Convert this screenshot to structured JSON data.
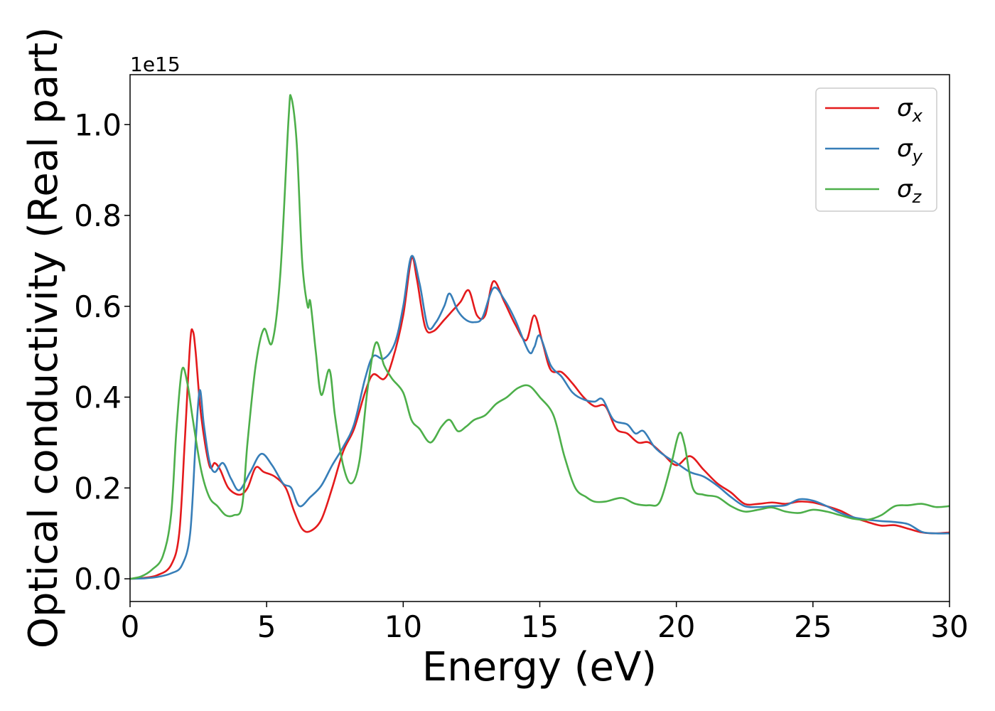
{
  "chart_data": {
    "type": "line",
    "title": "",
    "xlabel": "Energy (eV)",
    "ylabel": "Optical conductivity (Real part)",
    "y_offset_label": "1e15",
    "xlim": [
      0,
      30
    ],
    "ylim": [
      -0.05,
      1.11
    ],
    "xticks": [
      0,
      5,
      10,
      15,
      20,
      25,
      30
    ],
    "xtick_labels": [
      "0",
      "5",
      "10",
      "15",
      "20",
      "25",
      "30"
    ],
    "yticks": [
      0.0,
      0.2,
      0.4,
      0.6,
      0.8,
      1.0
    ],
    "ytick_labels": [
      "0.0",
      "0.2",
      "0.4",
      "0.6",
      "0.8",
      "1.0"
    ],
    "grid": false,
    "legend_position": "top-right",
    "series": [
      {
        "name": "σx",
        "symbol": "σ",
        "subscript": "x",
        "color": "#e41a1c",
        "points": [
          [
            0,
            0
          ],
          [
            0.5,
            0.002
          ],
          [
            1.0,
            0.008
          ],
          [
            1.5,
            0.03
          ],
          [
            1.8,
            0.1
          ],
          [
            2.0,
            0.3
          ],
          [
            2.2,
            0.52
          ],
          [
            2.3,
            0.545
          ],
          [
            2.4,
            0.5
          ],
          [
            2.6,
            0.36
          ],
          [
            2.9,
            0.25
          ],
          [
            3.1,
            0.255
          ],
          [
            3.3,
            0.24
          ],
          [
            3.6,
            0.2
          ],
          [
            4.0,
            0.185
          ],
          [
            4.3,
            0.2
          ],
          [
            4.6,
            0.245
          ],
          [
            4.9,
            0.235
          ],
          [
            5.3,
            0.225
          ],
          [
            5.7,
            0.2
          ],
          [
            6.0,
            0.15
          ],
          [
            6.3,
            0.11
          ],
          [
            6.6,
            0.105
          ],
          [
            7.0,
            0.13
          ],
          [
            7.4,
            0.2
          ],
          [
            7.8,
            0.28
          ],
          [
            8.2,
            0.33
          ],
          [
            8.6,
            0.41
          ],
          [
            8.9,
            0.45
          ],
          [
            9.3,
            0.44
          ],
          [
            9.6,
            0.48
          ],
          [
            10.0,
            0.58
          ],
          [
            10.3,
            0.705
          ],
          [
            10.5,
            0.66
          ],
          [
            10.8,
            0.555
          ],
          [
            11.1,
            0.545
          ],
          [
            11.5,
            0.57
          ],
          [
            11.8,
            0.59
          ],
          [
            12.1,
            0.61
          ],
          [
            12.4,
            0.635
          ],
          [
            12.7,
            0.58
          ],
          [
            13.0,
            0.58
          ],
          [
            13.3,
            0.655
          ],
          [
            13.7,
            0.61
          ],
          [
            14.1,
            0.56
          ],
          [
            14.5,
            0.525
          ],
          [
            14.8,
            0.58
          ],
          [
            15.1,
            0.52
          ],
          [
            15.4,
            0.46
          ],
          [
            15.8,
            0.455
          ],
          [
            16.2,
            0.43
          ],
          [
            16.6,
            0.4
          ],
          [
            17.0,
            0.38
          ],
          [
            17.4,
            0.38
          ],
          [
            17.8,
            0.33
          ],
          [
            18.2,
            0.32
          ],
          [
            18.6,
            0.3
          ],
          [
            19.0,
            0.3
          ],
          [
            19.5,
            0.275
          ],
          [
            20.0,
            0.25
          ],
          [
            20.5,
            0.27
          ],
          [
            21.0,
            0.24
          ],
          [
            21.5,
            0.21
          ],
          [
            22.0,
            0.19
          ],
          [
            22.5,
            0.165
          ],
          [
            23.0,
            0.165
          ],
          [
            23.5,
            0.168
          ],
          [
            24.0,
            0.165
          ],
          [
            24.5,
            0.17
          ],
          [
            25.0,
            0.168
          ],
          [
            25.5,
            0.16
          ],
          [
            26.0,
            0.15
          ],
          [
            26.5,
            0.135
          ],
          [
            27.0,
            0.125
          ],
          [
            27.5,
            0.117
          ],
          [
            28.0,
            0.118
          ],
          [
            28.5,
            0.11
          ],
          [
            29.0,
            0.102
          ],
          [
            29.5,
            0.1
          ],
          [
            30.0,
            0.102
          ]
        ]
      },
      {
        "name": "σy",
        "symbol": "σ",
        "subscript": "y",
        "color": "#377eb8",
        "points": [
          [
            0,
            0
          ],
          [
            0.5,
            0.001
          ],
          [
            1.0,
            0.004
          ],
          [
            1.5,
            0.012
          ],
          [
            1.9,
            0.03
          ],
          [
            2.2,
            0.1
          ],
          [
            2.4,
            0.3
          ],
          [
            2.55,
            0.415
          ],
          [
            2.7,
            0.34
          ],
          [
            2.9,
            0.26
          ],
          [
            3.1,
            0.235
          ],
          [
            3.4,
            0.255
          ],
          [
            3.7,
            0.22
          ],
          [
            4.0,
            0.195
          ],
          [
            4.4,
            0.235
          ],
          [
            4.8,
            0.275
          ],
          [
            5.2,
            0.25
          ],
          [
            5.6,
            0.21
          ],
          [
            5.9,
            0.2
          ],
          [
            6.2,
            0.16
          ],
          [
            6.6,
            0.18
          ],
          [
            7.0,
            0.205
          ],
          [
            7.4,
            0.25
          ],
          [
            7.8,
            0.29
          ],
          [
            8.2,
            0.34
          ],
          [
            8.6,
            0.44
          ],
          [
            8.9,
            0.49
          ],
          [
            9.3,
            0.485
          ],
          [
            9.7,
            0.52
          ],
          [
            10.0,
            0.6
          ],
          [
            10.3,
            0.71
          ],
          [
            10.6,
            0.65
          ],
          [
            10.9,
            0.555
          ],
          [
            11.2,
            0.565
          ],
          [
            11.5,
            0.6
          ],
          [
            11.7,
            0.628
          ],
          [
            12.0,
            0.59
          ],
          [
            12.3,
            0.57
          ],
          [
            12.6,
            0.565
          ],
          [
            12.9,
            0.575
          ],
          [
            13.3,
            0.64
          ],
          [
            13.7,
            0.615
          ],
          [
            14.1,
            0.57
          ],
          [
            14.6,
            0.5
          ],
          [
            14.8,
            0.51
          ],
          [
            15.0,
            0.535
          ],
          [
            15.4,
            0.47
          ],
          [
            15.8,
            0.445
          ],
          [
            16.2,
            0.41
          ],
          [
            16.6,
            0.395
          ],
          [
            17.0,
            0.39
          ],
          [
            17.3,
            0.395
          ],
          [
            17.7,
            0.35
          ],
          [
            18.2,
            0.34
          ],
          [
            18.5,
            0.32
          ],
          [
            18.8,
            0.325
          ],
          [
            19.2,
            0.29
          ],
          [
            19.6,
            0.27
          ],
          [
            20.0,
            0.255
          ],
          [
            20.5,
            0.235
          ],
          [
            21.0,
            0.225
          ],
          [
            21.5,
            0.205
          ],
          [
            22.0,
            0.18
          ],
          [
            22.5,
            0.16
          ],
          [
            23.0,
            0.158
          ],
          [
            23.5,
            0.16
          ],
          [
            24.0,
            0.162
          ],
          [
            24.5,
            0.175
          ],
          [
            25.0,
            0.172
          ],
          [
            25.5,
            0.16
          ],
          [
            26.0,
            0.145
          ],
          [
            26.5,
            0.135
          ],
          [
            27.0,
            0.13
          ],
          [
            27.5,
            0.127
          ],
          [
            28.0,
            0.125
          ],
          [
            28.5,
            0.12
          ],
          [
            29.0,
            0.103
          ],
          [
            29.5,
            0.1
          ],
          [
            30.0,
            0.1
          ]
        ]
      },
      {
        "name": "σz",
        "symbol": "σ",
        "subscript": "z",
        "color": "#4daf4a",
        "points": [
          [
            0,
            0
          ],
          [
            0.4,
            0.005
          ],
          [
            0.8,
            0.02
          ],
          [
            1.2,
            0.05
          ],
          [
            1.5,
            0.14
          ],
          [
            1.7,
            0.33
          ],
          [
            1.9,
            0.46
          ],
          [
            2.1,
            0.43
          ],
          [
            2.3,
            0.35
          ],
          [
            2.6,
            0.24
          ],
          [
            2.9,
            0.18
          ],
          [
            3.2,
            0.16
          ],
          [
            3.5,
            0.14
          ],
          [
            3.8,
            0.14
          ],
          [
            4.1,
            0.16
          ],
          [
            4.3,
            0.3
          ],
          [
            4.6,
            0.47
          ],
          [
            4.9,
            0.55
          ],
          [
            5.2,
            0.52
          ],
          [
            5.5,
            0.67
          ],
          [
            5.8,
            1.01
          ],
          [
            5.9,
            1.06
          ],
          [
            6.1,
            0.96
          ],
          [
            6.3,
            0.7
          ],
          [
            6.5,
            0.6
          ],
          [
            6.6,
            0.61
          ],
          [
            6.8,
            0.5
          ],
          [
            7.0,
            0.405
          ],
          [
            7.3,
            0.46
          ],
          [
            7.5,
            0.36
          ],
          [
            7.8,
            0.25
          ],
          [
            8.1,
            0.21
          ],
          [
            8.4,
            0.26
          ],
          [
            8.7,
            0.42
          ],
          [
            9.0,
            0.52
          ],
          [
            9.3,
            0.47
          ],
          [
            9.6,
            0.44
          ],
          [
            10.0,
            0.41
          ],
          [
            10.3,
            0.35
          ],
          [
            10.6,
            0.33
          ],
          [
            11.0,
            0.3
          ],
          [
            11.4,
            0.335
          ],
          [
            11.7,
            0.35
          ],
          [
            12.0,
            0.325
          ],
          [
            12.3,
            0.335
          ],
          [
            12.6,
            0.35
          ],
          [
            13.0,
            0.36
          ],
          [
            13.4,
            0.385
          ],
          [
            13.8,
            0.4
          ],
          [
            14.2,
            0.42
          ],
          [
            14.6,
            0.425
          ],
          [
            15.0,
            0.4
          ],
          [
            15.5,
            0.36
          ],
          [
            15.9,
            0.27
          ],
          [
            16.3,
            0.2
          ],
          [
            16.7,
            0.18
          ],
          [
            17.0,
            0.17
          ],
          [
            17.4,
            0.17
          ],
          [
            18.0,
            0.178
          ],
          [
            18.5,
            0.165
          ],
          [
            19.0,
            0.162
          ],
          [
            19.4,
            0.17
          ],
          [
            19.8,
            0.25
          ],
          [
            20.1,
            0.32
          ],
          [
            20.3,
            0.295
          ],
          [
            20.6,
            0.2
          ],
          [
            21.0,
            0.185
          ],
          [
            21.5,
            0.18
          ],
          [
            22.0,
            0.16
          ],
          [
            22.5,
            0.148
          ],
          [
            23.0,
            0.152
          ],
          [
            23.5,
            0.157
          ],
          [
            24.0,
            0.148
          ],
          [
            24.5,
            0.145
          ],
          [
            25.0,
            0.152
          ],
          [
            25.5,
            0.148
          ],
          [
            26.0,
            0.14
          ],
          [
            26.5,
            0.132
          ],
          [
            27.0,
            0.13
          ],
          [
            27.5,
            0.14
          ],
          [
            28.0,
            0.16
          ],
          [
            28.5,
            0.162
          ],
          [
            29.0,
            0.165
          ],
          [
            29.5,
            0.158
          ],
          [
            30.0,
            0.16
          ]
        ]
      }
    ]
  }
}
